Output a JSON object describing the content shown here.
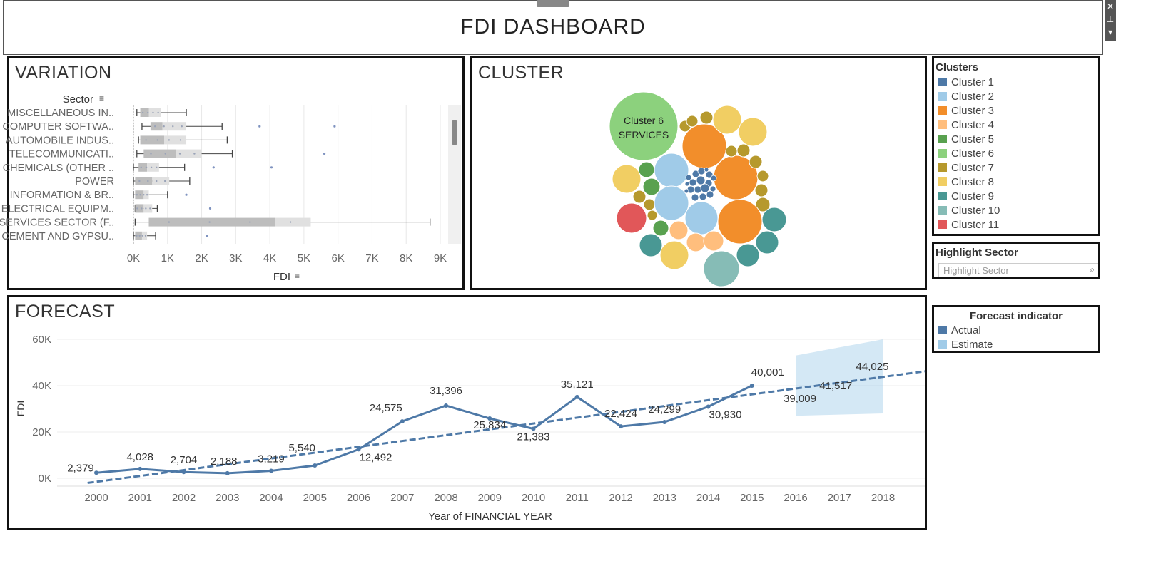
{
  "header": {
    "title": "FDI DASHBOARD"
  },
  "variation": {
    "title": "VARIATION",
    "sector_label": "Sector",
    "fdi_label": "FDI",
    "sectors": [
      "MISCELLANEOUS IN..",
      "COMPUTER SOFTWA..",
      "AUTOMOBILE INDUS..",
      "TELECOMMUNICATI..",
      "CHEMICALS (OTHER ..",
      "POWER",
      "INFORMATION & BR..",
      "ELECTRICAL EQUIPM..",
      "SERVICES SECTOR (F..",
      "CEMENT AND GYPSU.."
    ],
    "x_ticks": [
      "0K",
      "1K",
      "2K",
      "3K",
      "4K",
      "5K",
      "6K",
      "7K",
      "8K",
      "9K"
    ],
    "boxes": [
      {
        "min": 100,
        "q1": 200,
        "median": 450,
        "q3": 800,
        "max": 1550,
        "outliers": []
      },
      {
        "min": 250,
        "q1": 500,
        "median": 850,
        "q3": 1550,
        "max": 2600,
        "outliers": [
          3700,
          5900
        ]
      },
      {
        "min": 150,
        "q1": 200,
        "median": 900,
        "q3": 1550,
        "max": 2750,
        "outliers": []
      },
      {
        "min": 100,
        "q1": 300,
        "median": 1250,
        "q3": 2000,
        "max": 2900,
        "outliers": [
          5600
        ]
      },
      {
        "min": 0,
        "q1": 150,
        "median": 400,
        "q3": 750,
        "max": 1500,
        "outliers": [
          2350,
          4050
        ]
      },
      {
        "min": 0,
        "q1": 50,
        "median": 550,
        "q3": 1050,
        "max": 1650,
        "outliers": []
      },
      {
        "min": 0,
        "q1": 50,
        "median": 300,
        "q3": 450,
        "max": 1000,
        "outliers": [
          1550
        ]
      },
      {
        "min": 50,
        "q1": 50,
        "median": 300,
        "q3": 550,
        "max": 700,
        "outliers": [
          2250
        ]
      },
      {
        "min": 50,
        "q1": 450,
        "median": 4150,
        "q3": 5200,
        "max": 8700,
        "outliers": []
      },
      {
        "min": 0,
        "q1": 50,
        "median": 250,
        "q3": 400,
        "max": 650,
        "outliers": [
          2150
        ]
      }
    ],
    "xlim": [
      0,
      9000
    ]
  },
  "cluster": {
    "title": "CLUSTER",
    "bubble_label_line1": "Cluster 6",
    "bubble_label_line2": "SERVICES",
    "bubbles": [
      {
        "c": 5,
        "x": 902,
        "y": 177,
        "r": 48
      },
      {
        "c": 2,
        "x": 987,
        "y": 205,
        "r": 31
      },
      {
        "c": 2,
        "x": 1031,
        "y": 249,
        "r": 31
      },
      {
        "c": 7,
        "x": 1019,
        "y": 168,
        "r": 20
      },
      {
        "c": 7,
        "x": 1055,
        "y": 185,
        "r": 20
      },
      {
        "c": 1,
        "x": 941,
        "y": 239,
        "r": 24
      },
      {
        "c": 7,
        "x": 878,
        "y": 251,
        "r": 20
      },
      {
        "c": 4,
        "x": 906,
        "y": 238,
        "r": 11
      },
      {
        "c": 4,
        "x": 913,
        "y": 262,
        "r": 12
      },
      {
        "c": 6,
        "x": 960,
        "y": 177,
        "r": 8
      },
      {
        "c": 6,
        "x": 970,
        "y": 170,
        "r": 8
      },
      {
        "c": 6,
        "x": 990,
        "y": 165,
        "r": 9
      },
      {
        "c": 6,
        "x": 1025,
        "y": 212,
        "r": 8
      },
      {
        "c": 6,
        "x": 1042,
        "y": 211,
        "r": 9
      },
      {
        "c": 6,
        "x": 1059,
        "y": 227,
        "r": 9
      },
      {
        "c": 6,
        "x": 1069,
        "y": 247,
        "r": 8
      },
      {
        "c": 6,
        "x": 1067,
        "y": 267,
        "r": 9
      },
      {
        "c": 6,
        "x": 1069,
        "y": 287,
        "r": 10
      },
      {
        "c": 6,
        "x": 896,
        "y": 276,
        "r": 9
      },
      {
        "c": 6,
        "x": 910,
        "y": 287,
        "r": 8
      },
      {
        "c": 6,
        "x": 914,
        "y": 302,
        "r": 7
      },
      {
        "c": 1,
        "x": 941,
        "y": 285,
        "r": 24
      },
      {
        "c": 1,
        "x": 983,
        "y": 306,
        "r": 23
      },
      {
        "c": 2,
        "x": 1037,
        "y": 311,
        "r": 31
      },
      {
        "c": 10,
        "x": 885,
        "y": 306,
        "r": 21
      },
      {
        "c": 4,
        "x": 926,
        "y": 320,
        "r": 11
      },
      {
        "c": 3,
        "x": 951,
        "y": 323,
        "r": 13
      },
      {
        "c": 3,
        "x": 975,
        "y": 340,
        "r": 13
      },
      {
        "c": 3,
        "x": 1000,
        "y": 338,
        "r": 14
      },
      {
        "c": 8,
        "x": 912,
        "y": 344,
        "r": 16
      },
      {
        "c": 7,
        "x": 945,
        "y": 358,
        "r": 20
      },
      {
        "c": 9,
        "x": 1011,
        "y": 377,
        "r": 25
      },
      {
        "c": 8,
        "x": 1048,
        "y": 358,
        "r": 16
      },
      {
        "c": 8,
        "x": 1075,
        "y": 340,
        "r": 16
      },
      {
        "c": 8,
        "x": 1085,
        "y": 308,
        "r": 17
      }
    ],
    "small_cluster_1": [
      {
        "x": 965,
        "y": 249,
        "r": 4
      },
      {
        "x": 975,
        "y": 244,
        "r": 5
      },
      {
        "x": 983,
        "y": 240,
        "r": 5
      },
      {
        "x": 994,
        "y": 245,
        "r": 5
      },
      {
        "x": 971,
        "y": 256,
        "r": 5
      },
      {
        "x": 982,
        "y": 253,
        "r": 6
      },
      {
        "x": 993,
        "y": 257,
        "r": 5
      },
      {
        "x": 1000,
        "y": 250,
        "r": 4
      },
      {
        "x": 968,
        "y": 266,
        "r": 5
      },
      {
        "x": 978,
        "y": 266,
        "r": 5
      },
      {
        "x": 988,
        "y": 264,
        "r": 6
      },
      {
        "x": 999,
        "y": 265,
        "r": 4
      },
      {
        "x": 974,
        "y": 277,
        "r": 5
      },
      {
        "x": 985,
        "y": 276,
        "r": 5
      },
      {
        "x": 995,
        "y": 273,
        "r": 5
      },
      {
        "x": 963,
        "y": 258,
        "r": 3
      },
      {
        "x": 962,
        "y": 268,
        "r": 3
      },
      {
        "x": 990,
        "y": 238,
        "r": 3
      }
    ]
  },
  "clusters_legend": {
    "title": "Clusters",
    "items": [
      "Cluster 1",
      "Cluster 2",
      "Cluster 3",
      "Cluster 4",
      "Cluster 5",
      "Cluster 6",
      "Cluster 7",
      "Cluster 8",
      "Cluster 9",
      "Cluster 10",
      "Cluster 11"
    ],
    "colors": [
      "#4e79a7",
      "#a0cbe8",
      "#f28e2b",
      "#ffbe7d",
      "#59a14f",
      "#8cd17d",
      "#b6992d",
      "#f1ce63",
      "#499894",
      "#86bcb6",
      "#e15759"
    ]
  },
  "highlight": {
    "title": "Highlight Sector",
    "placeholder": "Highlight Sector"
  },
  "forecast_legend": {
    "title": "Forecast indicator",
    "items": [
      "Actual",
      "Estimate"
    ],
    "colors": [
      "#4e79a7",
      "#a0cbe8"
    ]
  },
  "forecast": {
    "title": "FORECAST",
    "ylabel": "FDI",
    "xlabel": "Year of FINANCIAL YEAR",
    "y_ticks": [
      "60K",
      "40K",
      "20K",
      "0K"
    ],
    "years": [
      "2000",
      "2001",
      "2002",
      "2003",
      "2004",
      "2005",
      "2006",
      "2007",
      "2008",
      "2009",
      "2010",
      "2011",
      "2012",
      "2013",
      "2014",
      "2015",
      "2016",
      "2017",
      "2018"
    ]
  },
  "chart_data": {
    "type": "line",
    "title": "FORECAST",
    "xlabel": "Year of FINANCIAL YEAR",
    "ylabel": "FDI",
    "ylim": [
      0,
      60000
    ],
    "x": [
      2000,
      2001,
      2002,
      2003,
      2004,
      2005,
      2006,
      2007,
      2008,
      2009,
      2010,
      2011,
      2012,
      2013,
      2014,
      2015
    ],
    "series": [
      {
        "name": "Actual",
        "values": [
          2379,
          4028,
          2704,
          2188,
          3219,
          5540,
          12492,
          24575,
          31396,
          25834,
          21383,
          35121,
          22424,
          24299,
          30930,
          40001
        ],
        "labels": [
          "2,379",
          "4,028",
          "2,704",
          "2,188",
          "3,219",
          "5,540",
          "12,492",
          "24,575",
          "31,396",
          "25,834",
          "21,383",
          "35,121",
          "22,424",
          "24,299",
          "30,930",
          "40,001"
        ]
      },
      {
        "name": "Estimate",
        "x": [
          2016,
          2017,
          2018
        ],
        "values": [
          39009,
          41517,
          44025
        ],
        "labels": [
          "39,009",
          "41,517",
          "44,025"
        ]
      }
    ],
    "trend_line": {
      "start": [
        1999.8,
        -2000
      ],
      "end": [
        2019,
        46200
      ]
    },
    "estimate_band": {
      "x": [
        2016,
        2018
      ],
      "upper": [
        53000,
        60000
      ],
      "lower": [
        27000,
        28000
      ]
    }
  }
}
